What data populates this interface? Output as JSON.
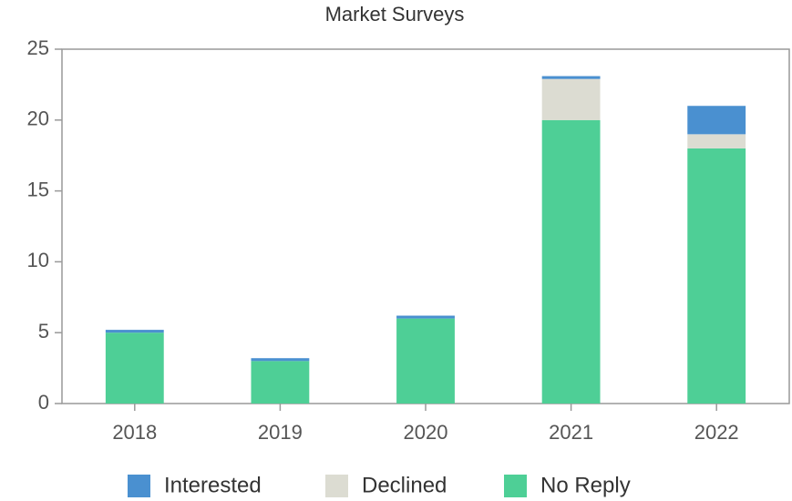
{
  "chart_data": {
    "type": "bar",
    "stacked": true,
    "title": "Market Surveys",
    "categories": [
      "2018",
      "2019",
      "2020",
      "2021",
      "2022"
    ],
    "series": [
      {
        "name": "No Reply",
        "color": "#4ecf96",
        "values": [
          5,
          3,
          6,
          20,
          18
        ]
      },
      {
        "name": "Declined",
        "color": "#dcdcd2",
        "values": [
          0,
          0,
          0,
          2.9,
          1
        ]
      },
      {
        "name": "Interested",
        "color": "#4a90d0",
        "values": [
          0.2,
          0.2,
          0.2,
          0.2,
          2
        ]
      }
    ],
    "legend_order": [
      "Interested",
      "Declined",
      "No Reply"
    ],
    "ylim": [
      0,
      25
    ],
    "yticks": [
      0,
      5,
      10,
      15,
      20,
      25
    ],
    "grid": false,
    "legend": "bottom"
  }
}
